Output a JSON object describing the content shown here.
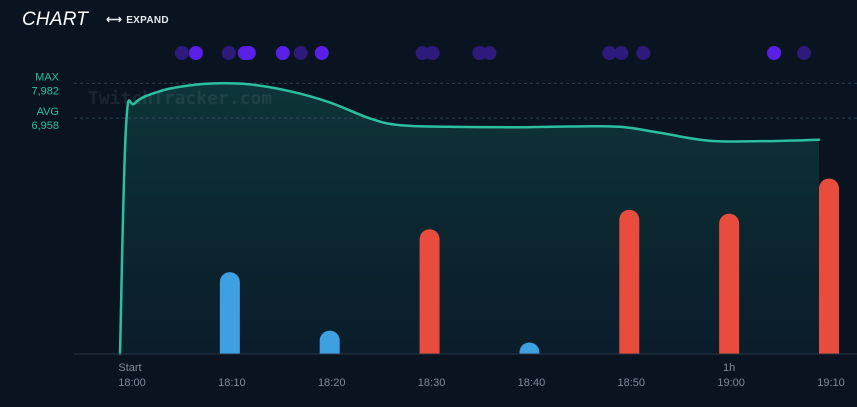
{
  "header": {
    "title": "CHART",
    "expand_label": "EXPAND",
    "expand_icon": "double-arrow-horizontal"
  },
  "watermark": "TwitchTracker.com",
  "colors": {
    "background": "#0a1421",
    "viewers_line": "#2bbfa0",
    "viewers_fill": "#0d3a3a",
    "bar_blue": "#3ea0e0",
    "bar_red": "#e74c3c",
    "dot_bright": "#5a1fe6",
    "dot_dim": "#2d1a7a",
    "axis_text": "#7f8a99",
    "ref_text": "#2bbfa0"
  },
  "chart_data": {
    "type": "line",
    "x_unit": "minutes since start",
    "x_range": [
      0,
      70
    ],
    "y_range": [
      0,
      8700
    ],
    "reference_lines": [
      {
        "name": "MAX",
        "value": 7982,
        "value_label": "7,982"
      },
      {
        "name": "AVG",
        "value": 6958,
        "value_label": "6,958"
      }
    ],
    "series": [
      {
        "values": [
          {
            "x": 0,
            "y": 0
          },
          {
            "x": 0.6,
            "y": 6700
          },
          {
            "x": 1.5,
            "y": 7400
          },
          {
            "x": 4,
            "y": 7750
          },
          {
            "x": 7,
            "y": 7920
          },
          {
            "x": 10,
            "y": 7982
          },
          {
            "x": 13,
            "y": 7950
          },
          {
            "x": 17,
            "y": 7750
          },
          {
            "x": 21,
            "y": 7420
          },
          {
            "x": 25,
            "y": 6950
          },
          {
            "x": 28,
            "y": 6750
          },
          {
            "x": 33,
            "y": 6700
          },
          {
            "x": 40,
            "y": 6690
          },
          {
            "x": 45,
            "y": 6710
          },
          {
            "x": 50,
            "y": 6700
          },
          {
            "x": 54,
            "y": 6530
          },
          {
            "x": 59,
            "y": 6290
          },
          {
            "x": 65,
            "y": 6280
          },
          {
            "x": 70,
            "y": 6320
          }
        ]
      }
    ],
    "bars": [
      {
        "x": 10,
        "value": 2.1,
        "color": "blue"
      },
      {
        "x": 20,
        "value": 0.6,
        "color": "blue"
      },
      {
        "x": 30,
        "value": 3.2,
        "color": "red"
      },
      {
        "x": 40,
        "value": 0.05,
        "color": "blue"
      },
      {
        "x": 50,
        "value": 3.7,
        "color": "red"
      },
      {
        "x": 60,
        "value": 3.6,
        "color": "red"
      },
      {
        "x": 70,
        "value": 4.5,
        "color": "red"
      }
    ],
    "bars_scale_max": 5,
    "events": [
      {
        "x": 6.2,
        "bright": false
      },
      {
        "x": 7.6,
        "bright": true
      },
      {
        "x": 10.9,
        "bright": false
      },
      {
        "x": 12.5,
        "bright": true
      },
      {
        "x": 12.9,
        "bright": true
      },
      {
        "x": 16.3,
        "bright": true
      },
      {
        "x": 18.1,
        "bright": false
      },
      {
        "x": 20.2,
        "bright": true
      },
      {
        "x": 30.3,
        "bright": false
      },
      {
        "x": 31.3,
        "bright": false
      },
      {
        "x": 36.0,
        "bright": false
      },
      {
        "x": 37.0,
        "bright": false
      },
      {
        "x": 49.0,
        "bright": false
      },
      {
        "x": 50.2,
        "bright": false
      },
      {
        "x": 52.4,
        "bright": false
      },
      {
        "x": 65.5,
        "bright": true
      },
      {
        "x": 68.5,
        "bright": false
      }
    ],
    "x_ticks": [
      {
        "x": 0,
        "label": "18:00",
        "sublabel": "Start"
      },
      {
        "x": 10,
        "label": "18:10",
        "sublabel": ""
      },
      {
        "x": 20,
        "label": "18:20",
        "sublabel": ""
      },
      {
        "x": 30,
        "label": "18:30",
        "sublabel": ""
      },
      {
        "x": 40,
        "label": "18:40",
        "sublabel": ""
      },
      {
        "x": 50,
        "label": "18:50",
        "sublabel": ""
      },
      {
        "x": 60,
        "label": "19:00",
        "sublabel": "1h"
      },
      {
        "x": 70,
        "label": "19:10",
        "sublabel": ""
      }
    ],
    "grid": false,
    "legend": "none"
  }
}
